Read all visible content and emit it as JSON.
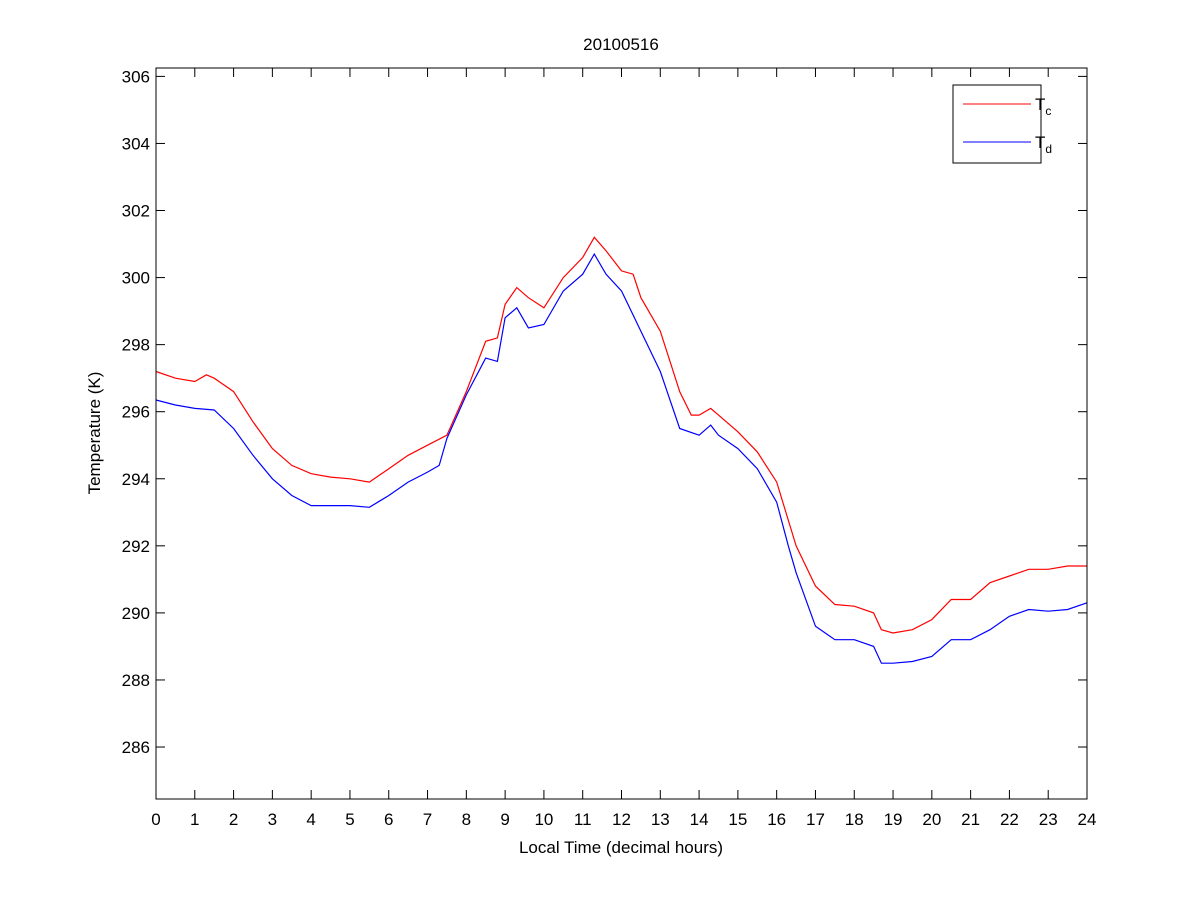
{
  "chart_data": {
    "type": "line",
    "title": "20100516",
    "xlabel": "Local Time (decimal hours)",
    "ylabel": "Temperature (K)",
    "xlim": [
      0,
      24
    ],
    "ylim": [
      284.45,
      306.25
    ],
    "xticks": [
      0,
      1,
      2,
      3,
      4,
      5,
      6,
      7,
      8,
      9,
      10,
      11,
      12,
      13,
      14,
      15,
      16,
      17,
      18,
      19,
      20,
      21,
      22,
      23,
      24
    ],
    "yticks": [
      286,
      288,
      290,
      292,
      294,
      296,
      298,
      300,
      302,
      304,
      306
    ],
    "grid": false,
    "legend_position": "top-right",
    "series": [
      {
        "name": "T",
        "subscript": "c",
        "color": "#ff0000",
        "x": [
          0,
          0.5,
          1,
          1.3,
          1.5,
          2,
          2.5,
          3,
          3.5,
          4,
          4.5,
          5,
          5.5,
          6,
          6.5,
          7,
          7.5,
          8,
          8.5,
          8.8,
          9,
          9.3,
          9.6,
          10,
          10.5,
          11,
          11.3,
          11.6,
          12,
          12.3,
          12.5,
          13,
          13.5,
          13.8,
          14,
          14.3,
          14.5,
          15,
          15.5,
          16,
          16.5,
          17,
          17.5,
          18,
          18.5,
          18.7,
          19,
          19.5,
          20,
          20.5,
          21,
          21.5,
          22,
          22.5,
          23,
          23.5,
          24
        ],
        "y": [
          297.2,
          297.0,
          296.9,
          297.1,
          297.0,
          296.6,
          295.7,
          294.9,
          294.4,
          294.15,
          294.05,
          294.0,
          293.9,
          294.3,
          294.7,
          295.0,
          295.3,
          296.6,
          298.1,
          298.2,
          299.2,
          299.7,
          299.4,
          299.1,
          300.0,
          300.6,
          301.2,
          300.8,
          300.2,
          300.1,
          299.4,
          298.4,
          296.6,
          295.9,
          295.9,
          296.1,
          295.9,
          295.4,
          294.8,
          293.9,
          292.0,
          290.8,
          290.25,
          290.2,
          290.0,
          289.5,
          289.4,
          289.5,
          289.8,
          290.4,
          290.4,
          290.9,
          291.1,
          291.3,
          291.3,
          291.4,
          291.4
        ]
      },
      {
        "name": "T",
        "subscript": "d",
        "color": "#0000ff",
        "x": [
          0,
          0.5,
          1,
          1.5,
          2,
          2.5,
          3,
          3.5,
          4,
          4.5,
          5,
          5.5,
          6,
          6.5,
          7,
          7.3,
          7.5,
          8,
          8.5,
          8.8,
          9,
          9.3,
          9.6,
          10,
          10.5,
          11,
          11.3,
          11.6,
          12,
          12.5,
          13,
          13.5,
          14,
          14.3,
          14.5,
          15,
          15.5,
          16,
          16.3,
          16.5,
          17,
          17.5,
          18,
          18.5,
          18.7,
          19,
          19.5,
          20,
          20.5,
          21,
          21.5,
          22,
          22.5,
          23,
          23.5,
          24
        ],
        "y": [
          296.35,
          296.2,
          296.1,
          296.05,
          295.5,
          294.7,
          294.0,
          293.5,
          293.2,
          293.2,
          293.2,
          293.15,
          293.5,
          293.9,
          294.2,
          294.4,
          295.2,
          296.5,
          297.6,
          297.5,
          298.8,
          299.1,
          298.5,
          298.6,
          299.6,
          300.1,
          300.7,
          300.1,
          299.6,
          298.4,
          297.2,
          295.5,
          295.3,
          295.6,
          295.3,
          294.9,
          294.3,
          293.3,
          292.0,
          291.2,
          289.6,
          289.2,
          289.2,
          289.0,
          288.5,
          288.5,
          288.55,
          288.7,
          289.2,
          289.2,
          289.5,
          289.9,
          290.1,
          290.05,
          290.1,
          290.3
        ]
      }
    ]
  }
}
